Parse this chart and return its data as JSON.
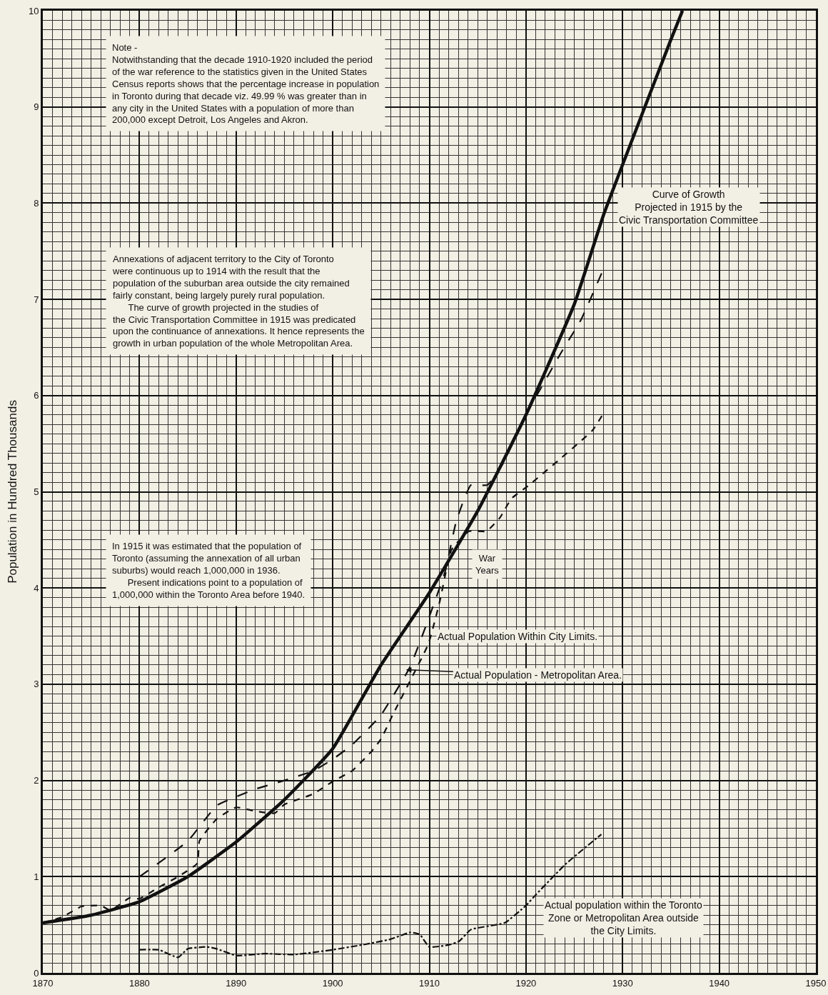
{
  "chart_data": {
    "type": "line",
    "ylabel": "Population in Hundred Thousands",
    "xlim": [
      1870,
      1950
    ],
    "xticks": [
      1870,
      1880,
      1890,
      1900,
      1910,
      1920,
      1930,
      1940,
      1950
    ],
    "ylim": [
      0,
      10
    ],
    "yticks": [
      0,
      1,
      2,
      3,
      4,
      5,
      6,
      7,
      8,
      9,
      10
    ],
    "grid": true,
    "series": [
      {
        "name": "Curve of Growth\nProjected in 1915 by the\nCivic Transportation Committee",
        "color": "#111111",
        "line_style": "solid",
        "x": [
          1870,
          1875,
          1880,
          1885,
          1890,
          1895,
          1900,
          1905,
          1910,
          1915,
          1920,
          1925,
          1928,
          1930,
          1935,
          1936.2
        ],
        "values": [
          0.52,
          0.6,
          0.74,
          1.0,
          1.36,
          1.8,
          2.33,
          3.2,
          3.95,
          4.8,
          5.8,
          6.95,
          7.87,
          8.4,
          9.7,
          10
        ]
      },
      {
        "name": "Actual Population - Metropolitan Area.",
        "color": "#111111",
        "line_style": "dashed",
        "x": [
          1880,
          1885,
          1888,
          1890,
          1892,
          1895,
          1898,
          1900,
          1902,
          1904,
          1905,
          1908,
          1911.6,
          1912.8,
          1914.3,
          1916,
          1917.6,
          1920,
          1923.6,
          1925.7,
          1928
        ],
        "values": [
          1.0,
          1.37,
          1.74,
          1.83,
          1.91,
          2.0,
          2.1,
          2.22,
          2.37,
          2.57,
          2.68,
          3.18,
          4.16,
          4.7,
          5.07,
          5.07,
          5.29,
          5.8,
          6.44,
          6.79,
          7.31
        ]
      },
      {
        "name": "Actual Population Within City Limits.",
        "color": "#111111",
        "line_style": "dotted",
        "x": [
          1870,
          1872,
          1874,
          1876,
          1877,
          1879,
          1880,
          1882,
          1884,
          1886,
          1886.2,
          1888,
          1890,
          1892,
          1894,
          1895,
          1898,
          1900,
          1902,
          1904,
          1905,
          1906.2,
          1909.9,
          1911.1,
          1912.3,
          1914.1,
          1915.9,
          1917.3,
          1918.5,
          1920.2,
          1923.4,
          1926.9,
          1928.1
        ],
        "values": [
          0.52,
          0.58,
          0.69,
          0.7,
          0.65,
          0.78,
          0.77,
          0.89,
          1.0,
          1.14,
          1.37,
          1.6,
          1.72,
          1.68,
          1.66,
          1.75,
          1.86,
          1.99,
          2.1,
          2.3,
          2.43,
          2.68,
          3.42,
          3.87,
          4.4,
          4.59,
          4.59,
          4.73,
          4.93,
          5.06,
          5.33,
          5.64,
          5.83
        ]
      },
      {
        "name": "Actual population within the Toronto\nZone or Metropolitan Area outside\nthe City Limits.",
        "color": "#111111",
        "line_style": "dashdot",
        "x": [
          1880,
          1882,
          1884,
          1885,
          1887,
          1888,
          1890,
          1893,
          1896,
          1900,
          1903,
          1906,
          1908,
          1909,
          1910,
          1912,
          1913.1,
          1914.3,
          1917.8,
          1920,
          1921,
          1924.1,
          1927.8
        ],
        "values": [
          0.24,
          0.24,
          0.16,
          0.25,
          0.27,
          0.25,
          0.18,
          0.2,
          0.19,
          0.24,
          0.29,
          0.35,
          0.42,
          0.4,
          0.27,
          0.29,
          0.33,
          0.45,
          0.52,
          0.7,
          0.81,
          1.13,
          1.44
        ]
      }
    ],
    "annotations": [
      "Note -\nNotwithstanding that the decade 1910-1920 included the period\nof the war reference to the statistics given in the United States\nCensus reports shows that the percentage increase in population\nin Toronto during that decade viz. 49.99 % was greater than in\nany city in the United States with a population of more than\n200,000 except Detroit, Los Angeles and Akron.",
      "Annexations of adjacent territory to the City of Toronto\nwere continuous up to 1914 with the result that the\npopulation of the suburban area outside the city remained\nfairly constant, being largely purely rural population.\n      The curve of growth projected in the studies of\nthe Civic Transportation Committee in 1915 was predicated\nupon the continuance of annexations. It hence represents the\ngrowth in urban population of the whole Metropolitan Area.",
      "In 1915 it was estimated that the population of\nToronto (assuming the annexation of all urban\nsuburbs) would reach 1,000,000 in 1936.\n      Present indications point to a population of\n1,000,000 within the Toronto Area before 1940.",
      {
        "text": "War\nYears",
        "x": 1916,
        "y": 4.25
      }
    ]
  }
}
